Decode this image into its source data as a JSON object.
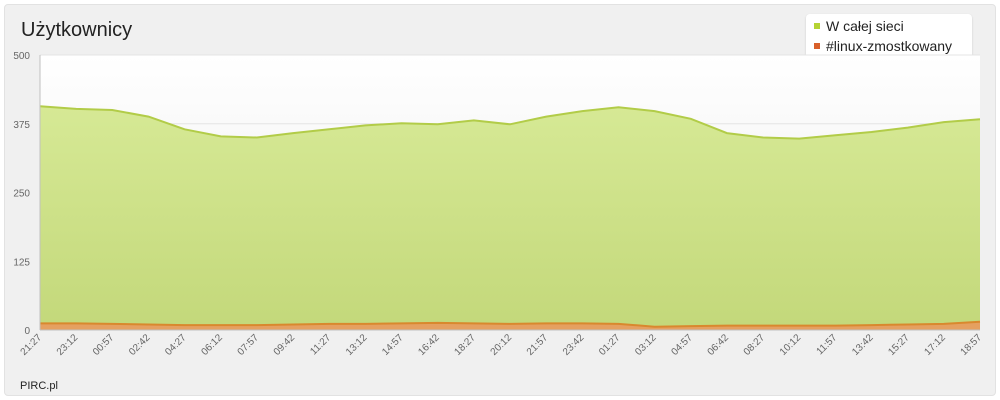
{
  "window": {
    "brand": "PIRC.pl"
  },
  "chart_data": {
    "type": "area",
    "title": "Użytkownicy",
    "xlabel": "",
    "ylabel": "",
    "ylim": [
      0,
      500
    ],
    "yticks": [
      "500",
      "375",
      "250",
      "125",
      "0"
    ],
    "ytick_values": [
      500,
      375,
      250,
      125,
      0
    ],
    "categories": [
      "21:27",
      "23:12",
      "00:57",
      "02:42",
      "04:27",
      "06:12",
      "07:57",
      "09:42",
      "11:27",
      "13:12",
      "14:57",
      "16:42",
      "18:27",
      "20:12",
      "21:57",
      "23:42",
      "01:27",
      "03:12",
      "04:57",
      "06:42",
      "08:27",
      "10:12",
      "11:57",
      "13:42",
      "15:27",
      "17:12",
      "18:57"
    ],
    "grid": true,
    "legend_position": "top-right",
    "series": [
      {
        "name": "W całej sieci",
        "color": "#b5d334",
        "fill_color": "#cce08a",
        "stroke_color": "#b2cc48",
        "values": [
          407,
          402,
          400,
          388,
          365,
          352,
          350,
          358,
          365,
          372,
          376,
          374,
          381,
          374,
          388,
          398,
          405,
          398,
          384,
          358,
          350,
          348,
          354,
          360,
          368,
          378,
          383
        ]
      },
      {
        "name": "#linux-zmostkowany",
        "color": "#d9602a",
        "fill_color": "#e5a060",
        "stroke_color": "#d9882e",
        "values": [
          12,
          12,
          11,
          10,
          9,
          9,
          9,
          10,
          11,
          11,
          12,
          13,
          12,
          11,
          12,
          12,
          11,
          6,
          7,
          8,
          8,
          8,
          8,
          9,
          10,
          11,
          15
        ]
      }
    ]
  }
}
